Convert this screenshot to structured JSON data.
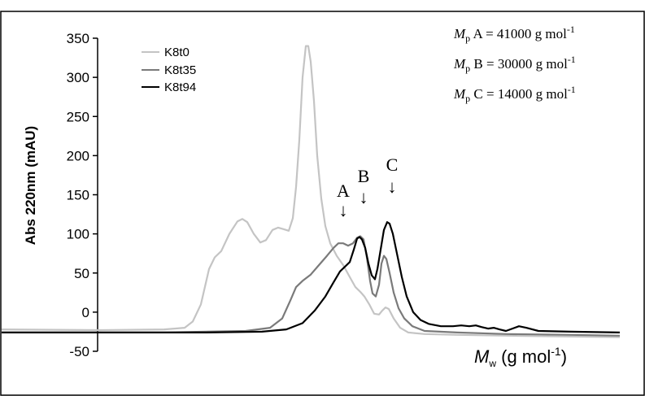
{
  "chart_data": {
    "type": "line",
    "title": "",
    "ylabel": "Abs 220nm (mAU)",
    "xlabel_main": "M",
    "xlabel_sub": "w",
    "xlabel_units": " (g mol",
    "xlabel_exp": "-1",
    "xlabel_close": ")",
    "ylim": [
      -50,
      350
    ],
    "yticks": [
      350,
      300,
      250,
      200,
      150,
      100,
      50,
      0,
      -50
    ],
    "ytick_labels": [
      "350",
      "300",
      "250",
      "200",
      "150",
      "100",
      "50",
      "0",
      "-50"
    ],
    "grid": false,
    "legend_position": "top-left",
    "series": [
      {
        "name": "K8t0",
        "color": "#c4c4c4",
        "points": [
          [
            0,
            -22
          ],
          [
            120,
            -23
          ],
          [
            200,
            -22
          ],
          [
            225,
            -20
          ],
          [
            235,
            -12
          ],
          [
            245,
            10
          ],
          [
            255,
            55
          ],
          [
            262,
            70
          ],
          [
            270,
            78
          ],
          [
            280,
            100
          ],
          [
            290,
            116
          ],
          [
            296,
            119
          ],
          [
            302,
            115
          ],
          [
            310,
            100
          ],
          [
            318,
            89
          ],
          [
            325,
            92
          ],
          [
            333,
            105
          ],
          [
            340,
            108
          ],
          [
            347,
            106
          ],
          [
            353,
            104
          ],
          [
            358,
            120
          ],
          [
            362,
            160
          ],
          [
            366,
            220
          ],
          [
            370,
            300
          ],
          [
            374,
            340
          ],
          [
            377,
            340
          ],
          [
            380,
            320
          ],
          [
            384,
            270
          ],
          [
            388,
            200
          ],
          [
            393,
            145
          ],
          [
            398,
            110
          ],
          [
            404,
            88
          ],
          [
            412,
            72
          ],
          [
            420,
            60
          ],
          [
            428,
            45
          ],
          [
            435,
            32
          ],
          [
            441,
            26
          ],
          [
            446,
            20
          ],
          [
            452,
            10
          ],
          [
            458,
            -2
          ],
          [
            464,
            -3
          ],
          [
            468,
            2
          ],
          [
            472,
            6
          ],
          [
            476,
            4
          ],
          [
            482,
            -8
          ],
          [
            490,
            -20
          ],
          [
            500,
            -26
          ],
          [
            520,
            -28
          ],
          [
            560,
            -29
          ],
          [
            620,
            -30
          ],
          [
            680,
            -31
          ],
          [
            760,
            -32
          ]
        ]
      },
      {
        "name": "K8t35",
        "color": "#7a7a7a",
        "points": [
          [
            0,
            -26
          ],
          [
            200,
            -26
          ],
          [
            300,
            -24
          ],
          [
            330,
            -20
          ],
          [
            345,
            -8
          ],
          [
            355,
            15
          ],
          [
            362,
            32
          ],
          [
            370,
            40
          ],
          [
            380,
            48
          ],
          [
            390,
            60
          ],
          [
            400,
            72
          ],
          [
            408,
            82
          ],
          [
            414,
            88
          ],
          [
            420,
            88
          ],
          [
            426,
            85
          ],
          [
            432,
            88
          ],
          [
            437,
            95
          ],
          [
            441,
            97
          ],
          [
            445,
            93
          ],
          [
            449,
            70
          ],
          [
            453,
            40
          ],
          [
            456,
            24
          ],
          [
            460,
            20
          ],
          [
            464,
            35
          ],
          [
            467,
            62
          ],
          [
            470,
            72
          ],
          [
            473,
            68
          ],
          [
            477,
            50
          ],
          [
            482,
            25
          ],
          [
            488,
            5
          ],
          [
            495,
            -8
          ],
          [
            505,
            -18
          ],
          [
            520,
            -24
          ],
          [
            560,
            -26
          ],
          [
            620,
            -28
          ],
          [
            700,
            -29
          ],
          [
            760,
            -30
          ]
        ]
      },
      {
        "name": "K8t94",
        "color": "#000000",
        "points": [
          [
            0,
            -26
          ],
          [
            250,
            -26
          ],
          [
            320,
            -25
          ],
          [
            350,
            -22
          ],
          [
            370,
            -14
          ],
          [
            385,
            2
          ],
          [
            398,
            20
          ],
          [
            408,
            38
          ],
          [
            416,
            52
          ],
          [
            422,
            58
          ],
          [
            428,
            64
          ],
          [
            433,
            80
          ],
          [
            437,
            94
          ],
          [
            440,
            96
          ],
          [
            443,
            93
          ],
          [
            447,
            82
          ],
          [
            451,
            62
          ],
          [
            455,
            47
          ],
          [
            459,
            42
          ],
          [
            462,
            55
          ],
          [
            466,
            80
          ],
          [
            470,
            105
          ],
          [
            474,
            115
          ],
          [
            477,
            113
          ],
          [
            481,
            100
          ],
          [
            486,
            75
          ],
          [
            492,
            45
          ],
          [
            498,
            20
          ],
          [
            506,
            0
          ],
          [
            515,
            -10
          ],
          [
            525,
            -15
          ],
          [
            540,
            -18
          ],
          [
            555,
            -18
          ],
          [
            565,
            -17
          ],
          [
            575,
            -18
          ],
          [
            583,
            -17
          ],
          [
            590,
            -19
          ],
          [
            598,
            -21
          ],
          [
            605,
            -20
          ],
          [
            612,
            -22
          ],
          [
            620,
            -24
          ],
          [
            628,
            -21
          ],
          [
            636,
            -18
          ],
          [
            645,
            -20
          ],
          [
            660,
            -24
          ],
          [
            700,
            -25
          ],
          [
            760,
            -26
          ]
        ]
      }
    ],
    "annotations": {
      "peak_labels": [
        {
          "label": "A",
          "arrow": "↓"
        },
        {
          "label": "B",
          "arrow": "↓"
        },
        {
          "label": "C",
          "arrow": "↓"
        }
      ],
      "mp_lines": [
        {
          "m": "M",
          "sub": "p",
          "text": " A = 41000 g mol",
          "exp": "-1"
        },
        {
          "m": "M",
          "sub": "p",
          "text": " B = 30000 g mol",
          "exp": "-1"
        },
        {
          "m": "M",
          "sub": "p",
          "text": " C = 14000 g mol",
          "exp": "-1"
        }
      ]
    }
  }
}
